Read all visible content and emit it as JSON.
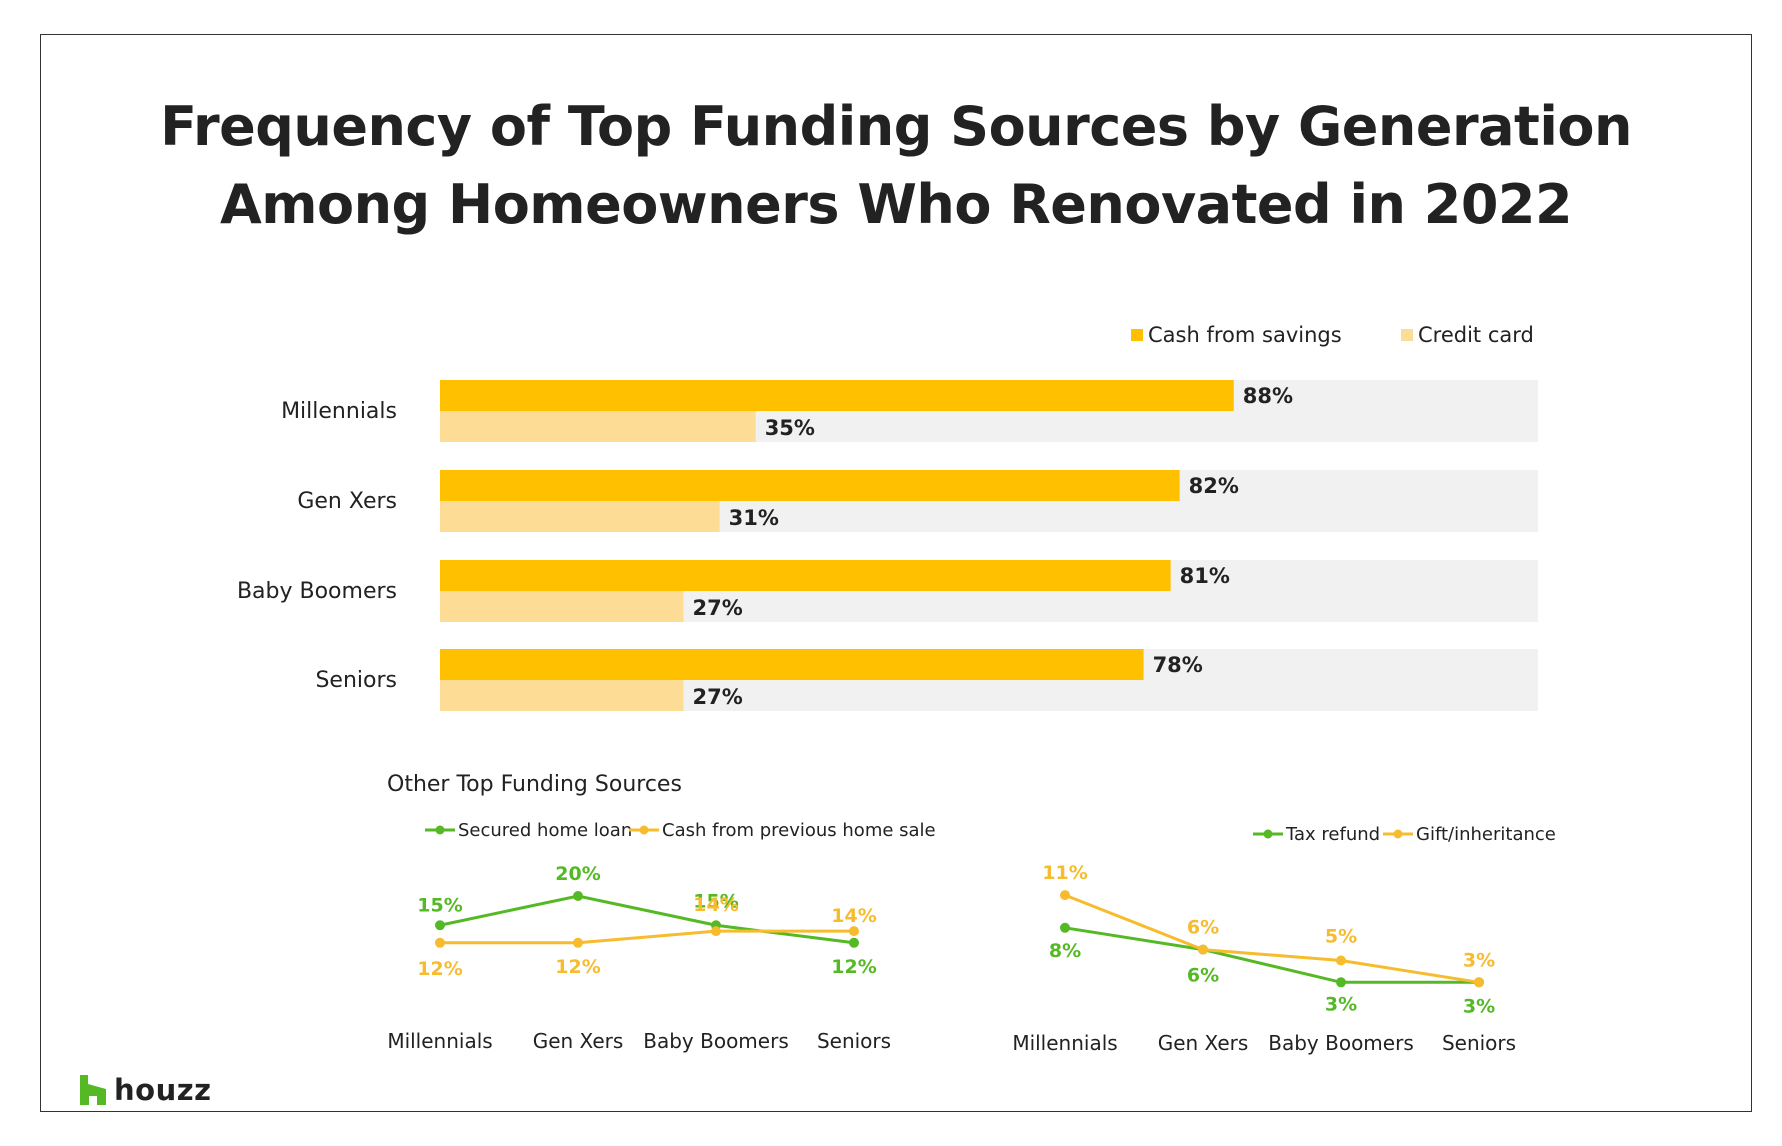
{
  "colors": {
    "savings": "#FFC000",
    "credit": "#FDDC96",
    "track": "#F1F1F1",
    "green": "#54B924",
    "orange": "#F7BB2E",
    "text": "#222222",
    "logo_green": "#54B924"
  },
  "title": {
    "line1": "Frequency of Top Funding Sources by Generation",
    "line2": "Among Homeowners Who Renovated in 2022"
  },
  "logo": {
    "text": "houzz",
    "icon": "houzz-h-icon"
  },
  "chart_data": [
    {
      "type": "bar",
      "orientation": "horizontal",
      "categories": [
        "Millennials",
        "Gen Xers",
        "Baby Boomers",
        "Seniors"
      ],
      "series": [
        {
          "name": "Cash from savings",
          "values": [
            88,
            82,
            81,
            78
          ],
          "labels": [
            "88%",
            "82%",
            "81%",
            "78%"
          ]
        },
        {
          "name": "Credit card",
          "values": [
            35,
            31,
            27,
            27
          ],
          "labels": [
            "35%",
            "31%",
            "27%",
            "27%"
          ]
        }
      ],
      "xlim": [
        0,
        100
      ],
      "legend": "top-right"
    },
    {
      "type": "line",
      "title": "Other Top Funding Sources",
      "categories": [
        "Millennials",
        "Gen Xers",
        "Baby Boomers",
        "Seniors"
      ],
      "series": [
        {
          "name": "Secured home loan",
          "values": [
            15,
            20,
            15,
            12
          ],
          "labels": [
            "15%",
            "20%",
            "15%",
            "12%"
          ]
        },
        {
          "name": "Cash from previous home sale",
          "values": [
            12,
            12,
            14,
            14
          ],
          "labels": [
            "12%",
            "12%",
            "14%",
            "14%"
          ]
        }
      ],
      "ylim": [
        10,
        21
      ],
      "legend": "top"
    },
    {
      "type": "line",
      "categories": [
        "Millennials",
        "Gen Xers",
        "Baby Boomers",
        "Seniors"
      ],
      "series": [
        {
          "name": "Tax refund",
          "values": [
            8,
            6,
            3,
            3
          ],
          "labels": [
            "8%",
            "6%",
            "3%",
            "3%"
          ]
        },
        {
          "name": "Gift/inheritance",
          "values": [
            11,
            6,
            5,
            3
          ],
          "labels": [
            "11%",
            "6%",
            "5%",
            "3%"
          ]
        }
      ],
      "ylim": [
        2,
        12
      ],
      "legend": "top-right"
    }
  ]
}
